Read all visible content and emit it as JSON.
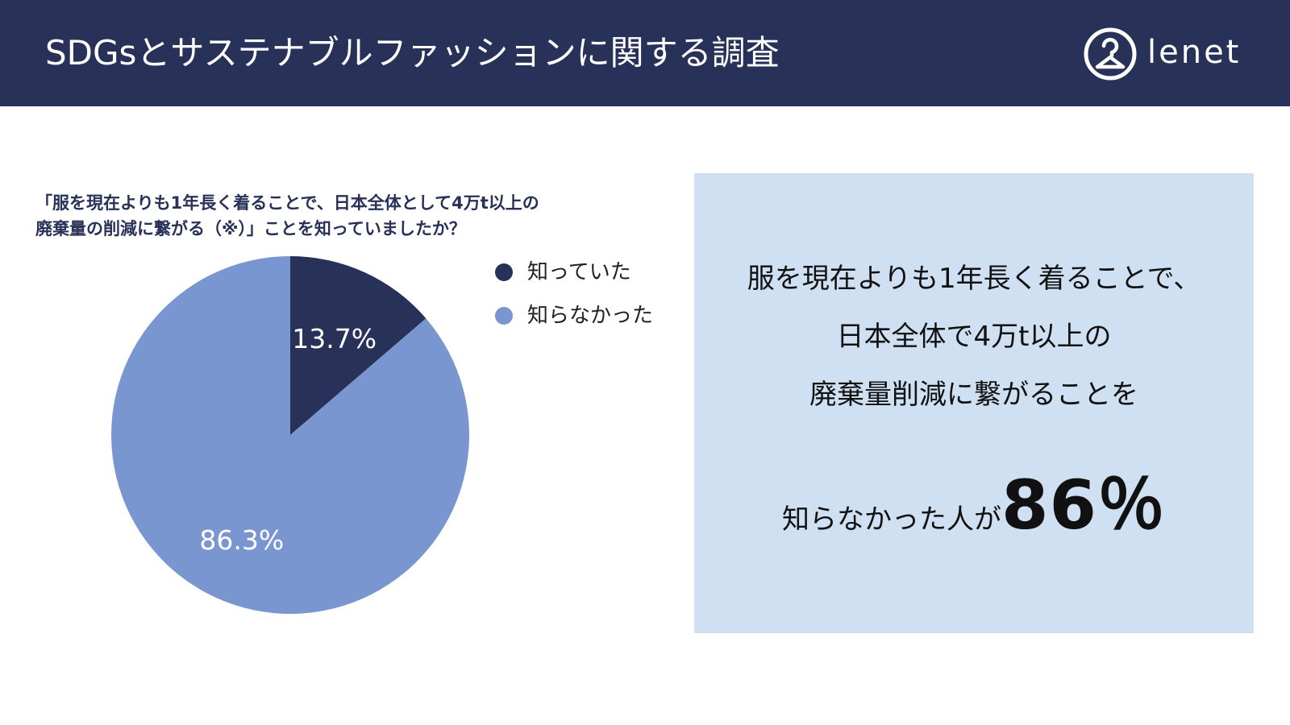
{
  "header": {
    "title": "SDGsとサステナブルファッションに関する調査",
    "logo_text": "lenet",
    "logo_icon": "hanger-circle-icon",
    "background_color": "#283157"
  },
  "question": {
    "line1": "「服を現在よりも1年長く着ることで、日本全体として4万t以上の",
    "line2": "廃棄量の削減に繋がる（※）」ことを知っていましたか？"
  },
  "chart_data": {
    "type": "pie",
    "title": "「服を現在よりも1年長く着ることで、日本全体として4万t以上の廃棄量の削減に繋がる（※）」ことを知っていましたか？",
    "slices": [
      {
        "label": "知っていた",
        "value": 13.7,
        "display": "13.7%",
        "color": "#283157"
      },
      {
        "label": "知らなかった",
        "value": 86.3,
        "display": "86.3%",
        "color": "#7a96d0"
      }
    ],
    "legend_placement": "right"
  },
  "panel": {
    "line1": "服を現在よりも1年長く着ることで、",
    "line2": "日本全体で4万t以上の",
    "line3": "廃棄量削減に繋がることを",
    "line4_text": "知らなかった人が",
    "line4_big": "86％",
    "background_color": "#cfe0f2"
  }
}
